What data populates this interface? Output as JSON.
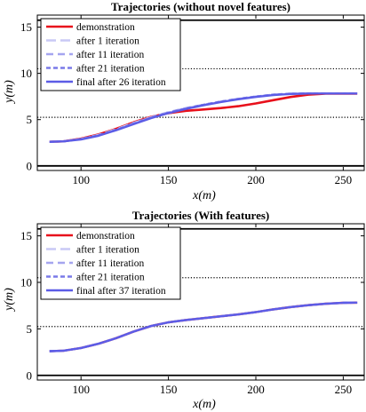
{
  "chart_data": [
    {
      "type": "line",
      "title": "Trajectories (without novel features)",
      "xlabel": "x(m)",
      "ylabel": "y(m)",
      "xlim": [
        75,
        262
      ],
      "ylim": [
        -0.5,
        16.3
      ],
      "xticks": [
        100,
        150,
        200,
        250
      ],
      "yticks": [
        0,
        5,
        10,
        15
      ],
      "reference_lines": [
        {
          "y": 0,
          "style": "solid"
        },
        {
          "y": 5.25,
          "style": "dotted"
        },
        {
          "y": 10.5,
          "style": "dotted"
        },
        {
          "y": 15.75,
          "style": "solid"
        }
      ],
      "legend_position": "top-left",
      "series": [
        {
          "name": "demonstration",
          "color": "#e8101b",
          "dash": "solid",
          "x": [
            82,
            90,
            100,
            110,
            120,
            130,
            140,
            150,
            160,
            170,
            180,
            190,
            200,
            210,
            220,
            230,
            240,
            250,
            258
          ],
          "y": [
            2.6,
            2.65,
            2.95,
            3.4,
            4.0,
            4.7,
            5.3,
            5.7,
            5.95,
            6.1,
            6.25,
            6.45,
            6.75,
            7.1,
            7.45,
            7.7,
            7.8,
            7.8,
            7.8
          ]
        },
        {
          "name": "after 1 iteration",
          "color": "#c9c9f5",
          "dash": "long-dash",
          "x": [
            82,
            90,
            100,
            110,
            120,
            130,
            140,
            150,
            160,
            170,
            180,
            190,
            200,
            210,
            220,
            230,
            240,
            250,
            258
          ],
          "y": [
            2.6,
            2.65,
            2.9,
            3.35,
            3.95,
            4.65,
            5.25,
            5.8,
            6.25,
            6.6,
            6.95,
            7.25,
            7.5,
            7.7,
            7.8,
            7.82,
            7.82,
            7.82,
            7.82
          ]
        },
        {
          "name": "after 11 iteration",
          "color": "#a5a5ef",
          "dash": "dash",
          "x": [
            82,
            90,
            100,
            110,
            120,
            130,
            140,
            150,
            160,
            170,
            180,
            190,
            200,
            210,
            220,
            230,
            240,
            250,
            258
          ],
          "y": [
            2.6,
            2.65,
            2.9,
            3.3,
            3.9,
            4.6,
            5.25,
            5.8,
            6.25,
            6.6,
            6.95,
            7.25,
            7.5,
            7.7,
            7.8,
            7.82,
            7.82,
            7.82,
            7.82
          ]
        },
        {
          "name": "after 21 iteration",
          "color": "#7a7ae8",
          "dash": "short-dash",
          "x": [
            82,
            90,
            100,
            110,
            120,
            130,
            140,
            150,
            160,
            170,
            180,
            190,
            200,
            210,
            220,
            230,
            240,
            250,
            258
          ],
          "y": [
            2.6,
            2.65,
            2.9,
            3.3,
            3.9,
            4.55,
            5.2,
            5.75,
            6.2,
            6.6,
            6.95,
            7.25,
            7.5,
            7.7,
            7.8,
            7.82,
            7.82,
            7.82,
            7.82
          ]
        },
        {
          "name": "final after 26 iteration",
          "color": "#5c5ce6",
          "dash": "solid",
          "x": [
            82,
            90,
            100,
            110,
            120,
            130,
            140,
            150,
            160,
            170,
            180,
            190,
            200,
            210,
            220,
            230,
            240,
            250,
            258
          ],
          "y": [
            2.6,
            2.65,
            2.85,
            3.25,
            3.85,
            4.5,
            5.15,
            5.7,
            6.15,
            6.55,
            6.9,
            7.2,
            7.45,
            7.65,
            7.78,
            7.82,
            7.82,
            7.82,
            7.82
          ]
        }
      ]
    },
    {
      "type": "line",
      "title": "Trajectories (With features)",
      "xlabel": "x(m)",
      "ylabel": "y(m)",
      "xlim": [
        75,
        262
      ],
      "ylim": [
        -0.5,
        16.3
      ],
      "xticks": [
        100,
        150,
        200,
        250
      ],
      "yticks": [
        0,
        5,
        10,
        15
      ],
      "reference_lines": [
        {
          "y": 0,
          "style": "solid"
        },
        {
          "y": 5.25,
          "style": "dotted"
        },
        {
          "y": 10.5,
          "style": "dotted"
        },
        {
          "y": 15.75,
          "style": "solid"
        }
      ],
      "legend_position": "top-left",
      "series": [
        {
          "name": "demonstration",
          "color": "#e8101b",
          "dash": "solid",
          "x": [
            82,
            90,
            100,
            110,
            120,
            130,
            140,
            150,
            160,
            170,
            180,
            190,
            200,
            210,
            220,
            230,
            240,
            250,
            258
          ],
          "y": [
            2.6,
            2.65,
            2.95,
            3.4,
            4.0,
            4.7,
            5.3,
            5.7,
            5.95,
            6.15,
            6.35,
            6.55,
            6.8,
            7.1,
            7.35,
            7.55,
            7.7,
            7.8,
            7.82
          ]
        },
        {
          "name": "after 1 iteration",
          "color": "#c9c9f5",
          "dash": "long-dash",
          "x": [
            82,
            90,
            100,
            110,
            120,
            130,
            140,
            150,
            160,
            170,
            180,
            190,
            200,
            210,
            220,
            230,
            240,
            250,
            258
          ],
          "y": [
            2.6,
            2.65,
            2.95,
            3.4,
            4.0,
            4.7,
            5.3,
            5.7,
            5.95,
            6.15,
            6.35,
            6.55,
            6.8,
            7.1,
            7.35,
            7.55,
            7.7,
            7.8,
            7.82
          ]
        },
        {
          "name": "after 11 iteration",
          "color": "#a5a5ef",
          "dash": "dash",
          "x": [
            82,
            90,
            100,
            110,
            120,
            130,
            140,
            150,
            160,
            170,
            180,
            190,
            200,
            210,
            220,
            230,
            240,
            250,
            258
          ],
          "y": [
            2.6,
            2.65,
            2.95,
            3.4,
            4.0,
            4.7,
            5.3,
            5.7,
            5.95,
            6.15,
            6.35,
            6.55,
            6.8,
            7.1,
            7.35,
            7.55,
            7.7,
            7.8,
            7.82
          ]
        },
        {
          "name": "after 21 iteration",
          "color": "#7a7ae8",
          "dash": "short-dash",
          "x": [
            82,
            90,
            100,
            110,
            120,
            130,
            140,
            150,
            160,
            170,
            180,
            190,
            200,
            210,
            220,
            230,
            240,
            250,
            258
          ],
          "y": [
            2.6,
            2.65,
            2.95,
            3.4,
            4.0,
            4.7,
            5.3,
            5.7,
            5.95,
            6.15,
            6.35,
            6.55,
            6.8,
            7.1,
            7.35,
            7.55,
            7.7,
            7.8,
            7.82
          ]
        },
        {
          "name": "final after 37 iteration",
          "color": "#5c5ce6",
          "dash": "solid",
          "x": [
            82,
            90,
            100,
            110,
            120,
            130,
            140,
            150,
            160,
            170,
            180,
            190,
            200,
            210,
            220,
            230,
            240,
            250,
            258
          ],
          "y": [
            2.6,
            2.65,
            2.95,
            3.4,
            4.0,
            4.7,
            5.3,
            5.7,
            5.95,
            6.15,
            6.35,
            6.55,
            6.8,
            7.1,
            7.35,
            7.55,
            7.7,
            7.8,
            7.82
          ]
        }
      ]
    }
  ]
}
